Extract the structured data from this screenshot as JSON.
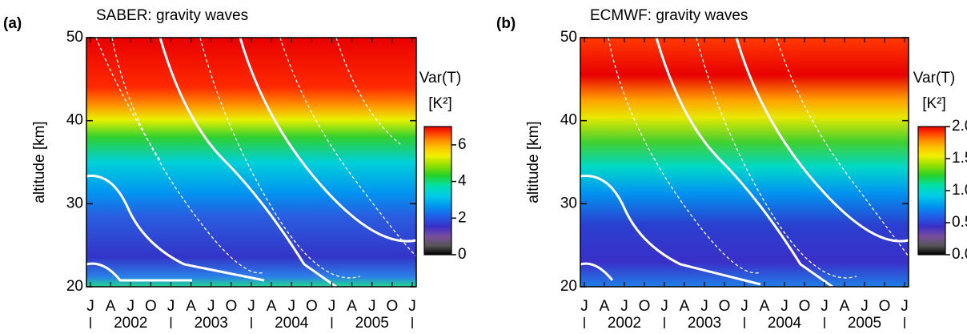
{
  "chart_data": [
    {
      "type": "contour",
      "panel_label": "(a)",
      "title": "SABER: gravity waves",
      "ylabel": "altitude [km]",
      "ylim": [
        20,
        50
      ],
      "yticks": [
        20,
        30,
        40,
        50
      ],
      "months": [
        "J",
        "A",
        "J",
        "O",
        "J",
        "A",
        "J",
        "O",
        "J",
        "A",
        "J",
        "O",
        "J",
        "A",
        "J",
        "O",
        "J"
      ],
      "years": [
        "2002",
        "2003",
        "2004",
        "2005"
      ],
      "colorbar_title": "Var(T)",
      "colorbar_unit": "[K²]",
      "clim": [
        0,
        7
      ],
      "cticks": [
        0,
        2,
        4,
        6
      ],
      "colormap": [
        "#000000",
        "#555555",
        "#7a4f9a",
        "#3a2fc8",
        "#1f5fe8",
        "#0096f0",
        "#00cce8",
        "#00e0a8",
        "#28d028",
        "#98e000",
        "#f0f000",
        "#ffc000",
        "#ff8000",
        "#ff3a00",
        "#e80000"
      ]
    },
    {
      "type": "contour",
      "panel_label": "(b)",
      "title": "ECMWF: gravity waves",
      "ylabel": "altitude [km]",
      "ylim": [
        20,
        50
      ],
      "yticks": [
        20,
        30,
        40,
        50
      ],
      "months": [
        "J",
        "A",
        "J",
        "O",
        "J",
        "A",
        "J",
        "O",
        "J",
        "A",
        "J",
        "O",
        "J",
        "A",
        "J",
        "O",
        "J"
      ],
      "years": [
        "2002",
        "2003",
        "2004",
        "2005"
      ],
      "colorbar_title": "Var(T)",
      "colorbar_unit": "[K²]",
      "clim": [
        0,
        2
      ],
      "cticks": [
        {
          "value": 0,
          "label": "0.0"
        },
        0.5,
        {
          "value": 1,
          "label": "1.0"
        },
        1.5,
        {
          "value": 2,
          "label": "2.0"
        }
      ],
      "colormap": [
        "#000000",
        "#555555",
        "#7a4f9a",
        "#3a2fc8",
        "#1f5fe8",
        "#0096f0",
        "#00cce8",
        "#00e0a8",
        "#28d028",
        "#98e000",
        "#f0f000",
        "#ffc000",
        "#ff8000",
        "#ff3a00",
        "#e80000"
      ]
    }
  ]
}
